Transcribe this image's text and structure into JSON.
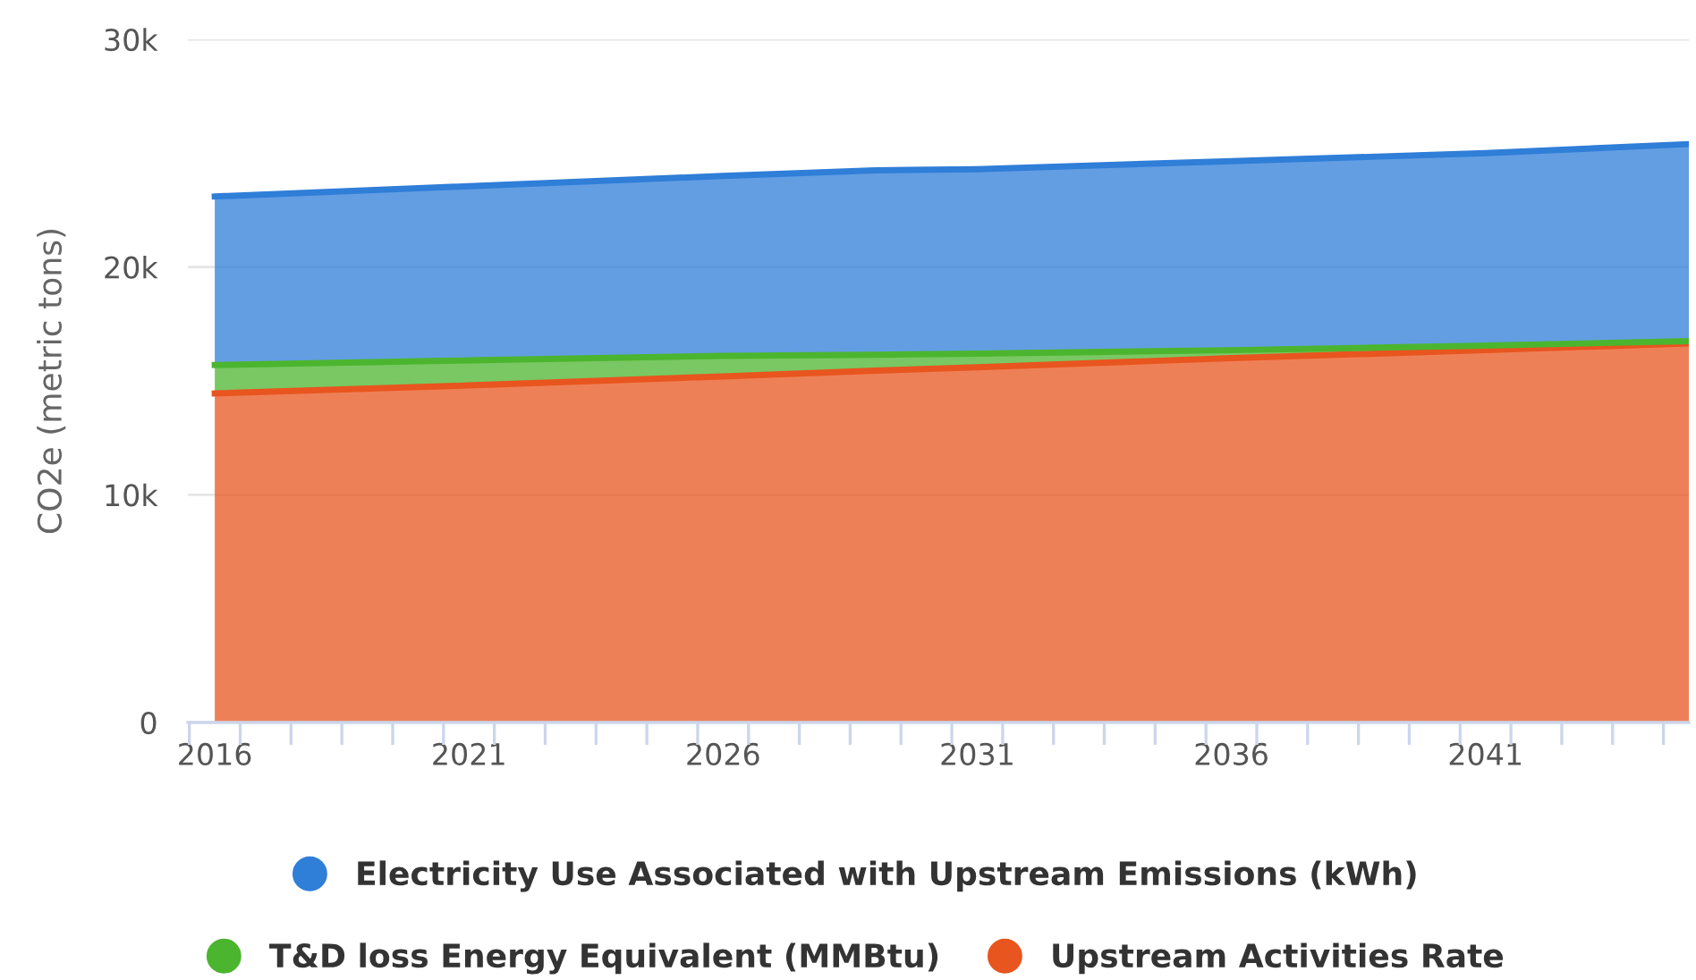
{
  "chart_data": {
    "type": "area",
    "stacked": true,
    "ylabel": "CO2e (metric tons)",
    "x": [
      2016,
      2021,
      2026,
      2029,
      2031,
      2036,
      2041,
      2045
    ],
    "xlim": [
      2015.47,
      2045
    ],
    "xticks": [
      2016,
      2021,
      2026,
      2031,
      2036,
      2041
    ],
    "ylim": [
      0,
      30000
    ],
    "yticks": [
      {
        "value": 0,
        "label": "0"
      },
      {
        "value": 10000,
        "label": "10k"
      },
      {
        "value": 20000,
        "label": "20k"
      },
      {
        "value": 30000,
        "label": "30k"
      }
    ],
    "grid": "y",
    "legend": "bottom",
    "series": [
      {
        "name": "Upstream Activities Rate",
        "color": "#e8551f",
        "values": [
          14450,
          14800,
          15200,
          15450,
          15600,
          16000,
          16350,
          16650
        ]
      },
      {
        "name": "T&D loss Energy Equivalent (MMBtu)",
        "color": "#4cb52f",
        "values": [
          1250,
          1100,
          900,
          700,
          600,
          350,
          200,
          100
        ]
      },
      {
        "name": "Electricity Use Associated with Upstream Emissions (kWh)",
        "color": "#2f7ed8",
        "values": [
          7400,
          7650,
          7900,
          8100,
          8100,
          8300,
          8450,
          8650
        ]
      }
    ]
  }
}
